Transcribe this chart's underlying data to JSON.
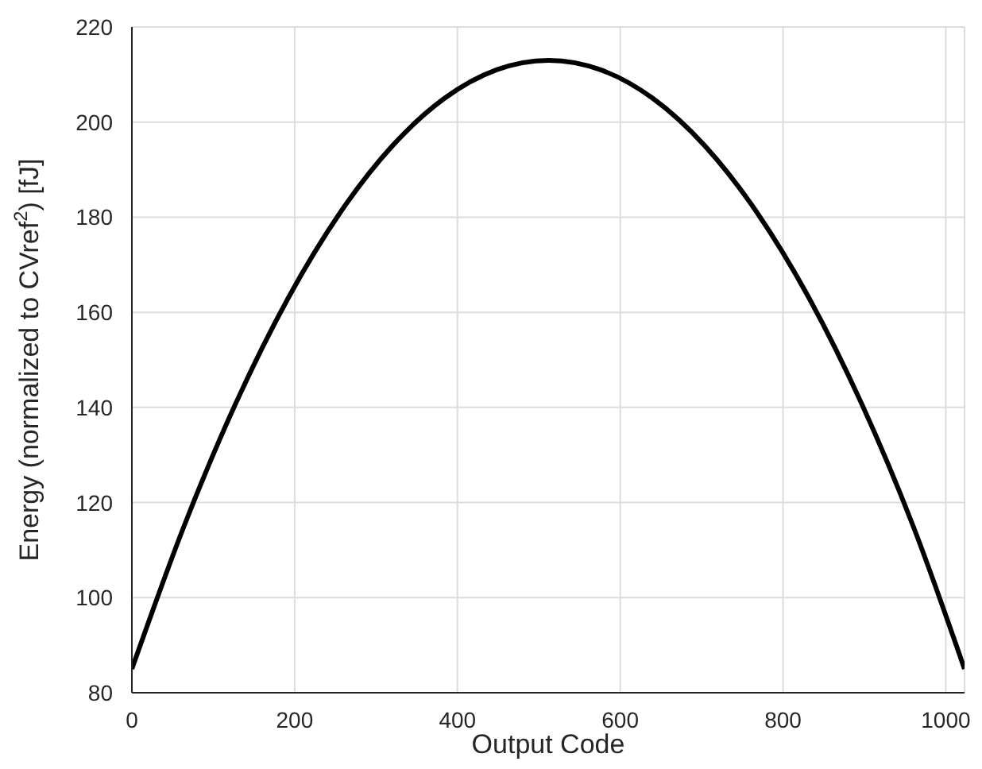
{
  "chart_data": {
    "type": "line",
    "xlabel": "Output Code",
    "ylabel": "Energy (normalized to CVref$^{2}$) [fJ]",
    "x": [
      0,
      64,
      128,
      192,
      256,
      320,
      384,
      448,
      512,
      576,
      640,
      704,
      768,
      832,
      896,
      960,
      1023
    ],
    "series": [
      {
        "color": "#000000",
        "values": [
          85,
          115,
          141,
          163,
          181,
          195,
          205,
          211,
          213,
          211,
          205,
          195,
          181,
          163,
          141,
          115,
          85
        ]
      }
    ],
    "xlim": [
      0,
      1023
    ],
    "xticks": [
      0,
      200,
      400,
      600,
      800,
      1000
    ],
    "ylim": [
      80,
      220
    ],
    "yticks": [
      80,
      100,
      120,
      140,
      160,
      180,
      200,
      220
    ],
    "grid": true,
    "marker": "none",
    "line_style": "solid"
  }
}
